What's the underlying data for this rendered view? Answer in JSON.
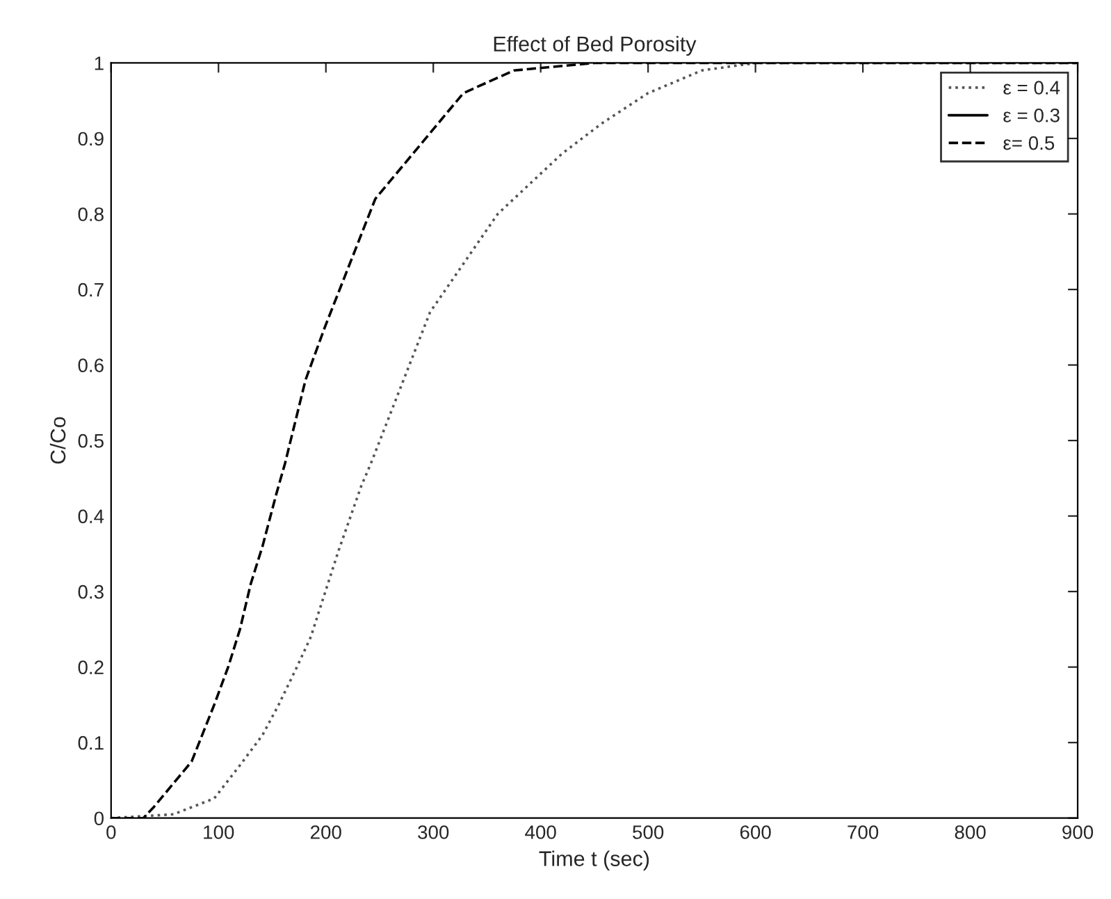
{
  "chart_data": {
    "type": "line",
    "title": "Effect of Bed Porosity",
    "xlabel": "Time t (sec)",
    "ylabel": "C/Co",
    "xlim": [
      0,
      900
    ],
    "xticks": [
      0,
      100,
      200,
      300,
      400,
      500,
      600,
      700,
      800,
      900
    ],
    "ylim": [
      0,
      1
    ],
    "yticks": [
      0,
      0.1,
      0.2,
      0.3,
      0.4,
      0.5,
      0.6,
      0.7,
      0.8,
      0.9,
      1
    ],
    "grid": false,
    "legend": "top right",
    "series": [
      {
        "name": "ε = 0.4",
        "color": "#555555",
        "line_style": "dotted",
        "x": [
          0,
          58,
          96,
          120,
          141,
          156,
          173,
          186,
          195,
          212,
          233,
          242,
          297,
          360,
          420,
          457,
          500,
          550,
          600,
          900
        ],
        "values": [
          0,
          0.005,
          0.026,
          0.07,
          0.11,
          0.15,
          0.2,
          0.24,
          0.28,
          0.355,
          0.44,
          0.47,
          0.67,
          0.8,
          0.88,
          0.92,
          0.96,
          0.99,
          1,
          1
        ]
      },
      {
        "name": "ε = 0.3",
        "color": "#000000",
        "line_style": "solid"
      },
      {
        "name": "ε= 0.5",
        "color": "#000000",
        "line_style": "dashed",
        "x": [
          0,
          30,
          40,
          75,
          96,
          109,
          120,
          130,
          141,
          154,
          162,
          181,
          199,
          246,
          328,
          375,
          450,
          900
        ],
        "values": [
          0,
          0,
          0.015,
          0.075,
          0.15,
          0.2,
          0.25,
          0.31,
          0.36,
          0.43,
          0.47,
          0.58,
          0.65,
          0.82,
          0.96,
          0.99,
          1,
          1
        ]
      }
    ]
  }
}
